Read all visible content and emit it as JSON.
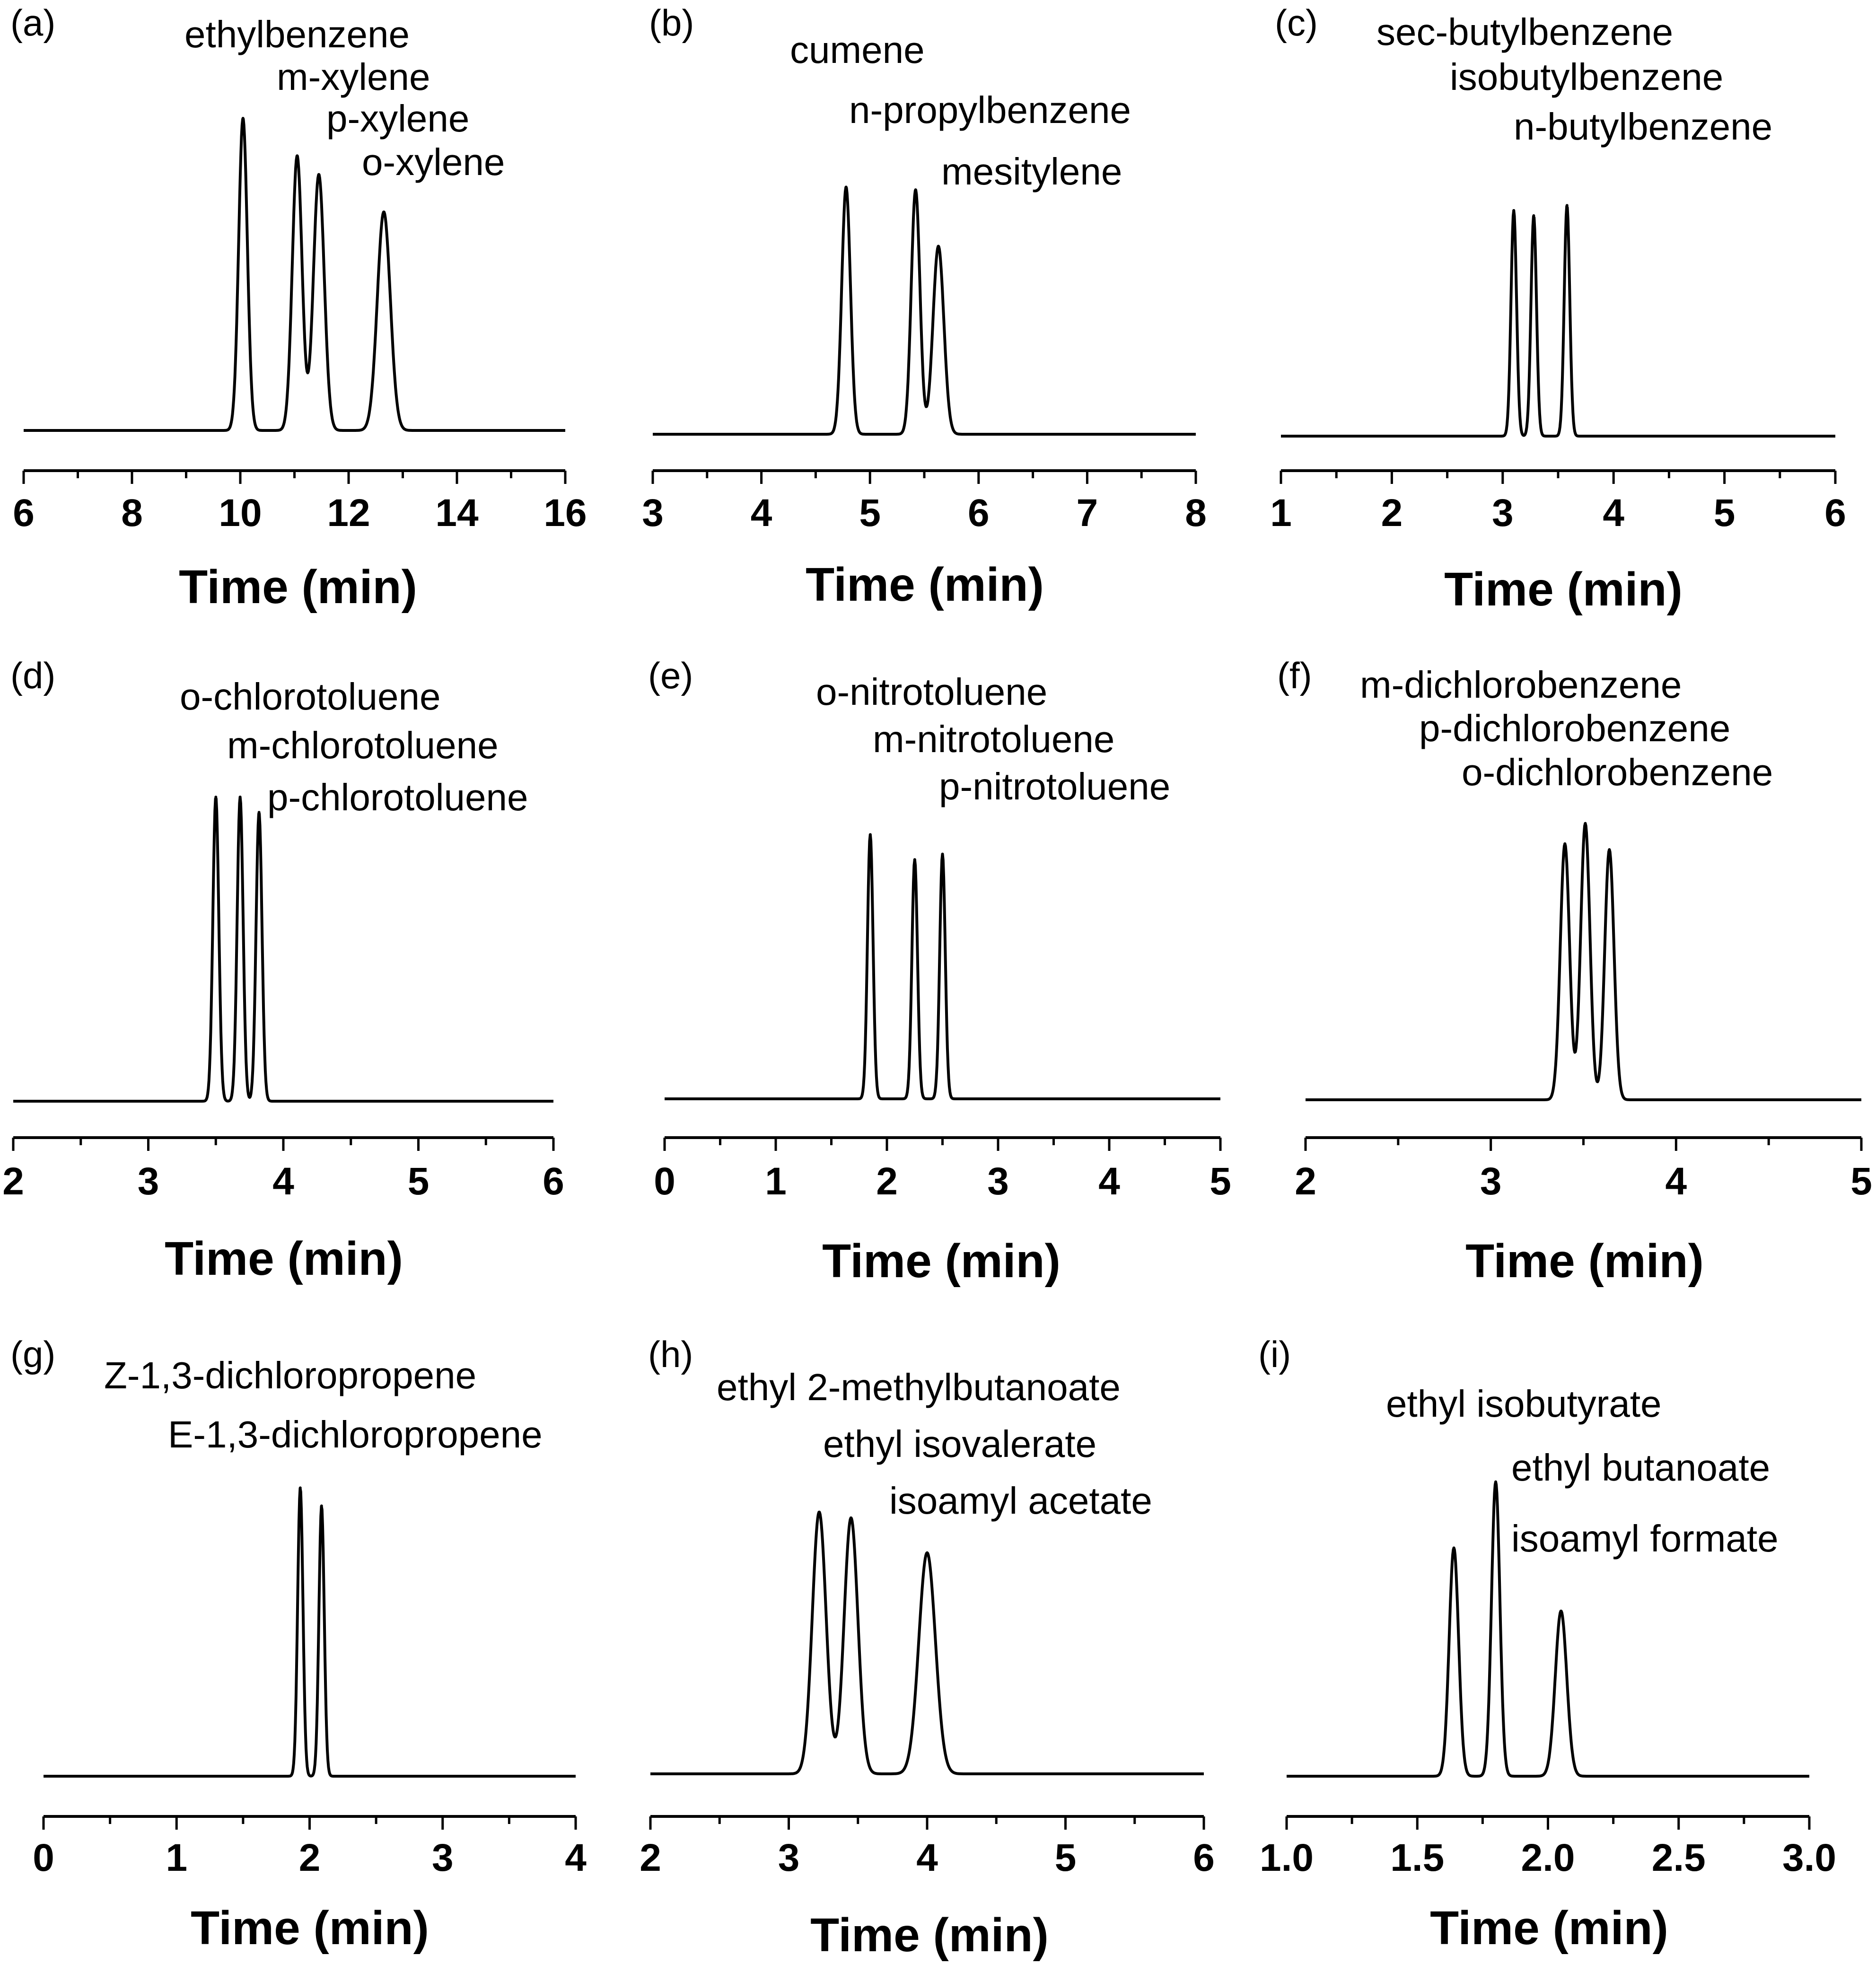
{
  "chart_data": [
    {
      "type": "line",
      "panel": "(a)",
      "xlabel": "Time (min)",
      "xlim": [
        6,
        16
      ],
      "xticks": [
        6,
        8,
        10,
        12,
        14,
        16
      ],
      "tick_labels": [
        "6",
        "8",
        "10",
        "12",
        "14",
        "16"
      ],
      "peaks": [
        {
          "name": "ethylbenzene",
          "x": 10.05,
          "height": 1.0,
          "width": 0.08
        },
        {
          "name": "m-xylene",
          "x": 11.05,
          "height": 0.88,
          "width": 0.09
        },
        {
          "name": "p-xylene",
          "x": 11.45,
          "height": 0.82,
          "width": 0.1
        },
        {
          "name": "o-xylene",
          "x": 12.65,
          "height": 0.7,
          "width": 0.12
        }
      ]
    },
    {
      "type": "line",
      "panel": "(b)",
      "xlabel": "Time (min)",
      "xlim": [
        3,
        8
      ],
      "xticks": [
        3,
        4,
        5,
        6,
        7,
        8
      ],
      "tick_labels": [
        "3",
        "4",
        "5",
        "6",
        "7",
        "8"
      ],
      "peaks": [
        {
          "name": "cumene",
          "x": 4.78,
          "height": 0.92,
          "width": 0.04
        },
        {
          "name": "n-propylbenzene",
          "x": 5.42,
          "height": 0.91,
          "width": 0.04
        },
        {
          "name": "mesitylene",
          "x": 5.63,
          "height": 0.7,
          "width": 0.05
        }
      ]
    },
    {
      "type": "line",
      "panel": "(c)",
      "xlabel": "Time (min)",
      "xlim": [
        1,
        6
      ],
      "xticks": [
        1,
        2,
        3,
        4,
        5,
        6
      ],
      "tick_labels": [
        "1",
        "2",
        "3",
        "4",
        "5",
        "6"
      ],
      "peaks": [
        {
          "name": "sec-butylbenzene",
          "x": 3.1,
          "height": 0.88,
          "width": 0.025
        },
        {
          "name": "isobutylbenzene",
          "x": 3.28,
          "height": 0.86,
          "width": 0.025
        },
        {
          "name": "n-butylbenzene",
          "x": 3.58,
          "height": 0.9,
          "width": 0.025
        }
      ]
    },
    {
      "type": "line",
      "panel": "(d)",
      "xlabel": "Time (min)",
      "xlim": [
        2,
        6
      ],
      "xticks": [
        2,
        3,
        4,
        5,
        6
      ],
      "tick_labels": [
        "2",
        "3",
        "4",
        "5",
        "6"
      ],
      "peaks": [
        {
          "name": "o-chlorotoluene",
          "x": 3.5,
          "height": 1.0,
          "width": 0.022
        },
        {
          "name": "m-chlorotoluene",
          "x": 3.68,
          "height": 1.0,
          "width": 0.022
        },
        {
          "name": "p-chlorotoluene",
          "x": 3.82,
          "height": 0.95,
          "width": 0.022
        }
      ]
    },
    {
      "type": "line",
      "panel": "(e)",
      "xlabel": "Time (min)",
      "xlim": [
        0,
        5
      ],
      "xticks": [
        0,
        1,
        2,
        3,
        4,
        5
      ],
      "tick_labels": [
        "0",
        "1",
        "2",
        "3",
        "4",
        "5"
      ],
      "peaks": [
        {
          "name": "o-nitrotoluene",
          "x": 1.85,
          "height": 0.95,
          "width": 0.025
        },
        {
          "name": "m-nitrotoluene",
          "x": 2.25,
          "height": 0.86,
          "width": 0.025
        },
        {
          "name": "p-nitrotoluene",
          "x": 2.5,
          "height": 0.88,
          "width": 0.025
        }
      ]
    },
    {
      "type": "line",
      "panel": "(f)",
      "xlabel": "Time (min)",
      "xlim": [
        2,
        5
      ],
      "xticks": [
        2,
        3,
        4,
        5
      ],
      "tick_labels": [
        "2",
        "3",
        "4",
        "5"
      ],
      "peaks": [
        {
          "name": "m-dichlorobenzene",
          "x": 3.4,
          "height": 0.88,
          "width": 0.025
        },
        {
          "name": "p-dichlorobenzene",
          "x": 3.51,
          "height": 0.95,
          "width": 0.025
        },
        {
          "name": "o-dichlorobenzene",
          "x": 3.64,
          "height": 0.86,
          "width": 0.025
        }
      ]
    },
    {
      "type": "line",
      "panel": "(g)",
      "xlabel": "Time (min)",
      "xlim": [
        0,
        4
      ],
      "xticks": [
        0,
        1,
        2,
        3,
        4
      ],
      "tick_labels": [
        "0",
        "1",
        "2",
        "3",
        "4"
      ],
      "peaks": [
        {
          "name": "Z-1,3-dichloropropene",
          "x": 1.93,
          "height": 0.96,
          "width": 0.02
        },
        {
          "name": "E-1,3-dichloropropene",
          "x": 2.09,
          "height": 0.9,
          "width": 0.02
        }
      ]
    },
    {
      "type": "line",
      "panel": "(h)",
      "xlabel": "Time (min)",
      "xlim": [
        2,
        6
      ],
      "xticks": [
        2,
        3,
        4,
        5,
        6
      ],
      "tick_labels": [
        "2",
        "3",
        "4",
        "5",
        "6"
      ],
      "peaks": [
        {
          "name": "ethyl 2-methylbutanoate",
          "x": 3.22,
          "height": 0.9,
          "width": 0.05
        },
        {
          "name": "ethyl isovalerate",
          "x": 3.45,
          "height": 0.88,
          "width": 0.05
        },
        {
          "name": "isoamyl acetate",
          "x": 4.0,
          "height": 0.76,
          "width": 0.06
        }
      ]
    },
    {
      "type": "line",
      "panel": "(i)",
      "xlabel": "Time (min)",
      "xlim": [
        1.0,
        3.0
      ],
      "xticks": [
        1.0,
        1.5,
        2.0,
        2.5,
        3.0
      ],
      "tick_labels": [
        "1.0",
        "1.5",
        "2.0",
        "2.5",
        "3.0"
      ],
      "peaks": [
        {
          "name": "ethyl isobutyrate",
          "x": 1.64,
          "height": 0.76,
          "width": 0.018
        },
        {
          "name": "ethyl butanoate",
          "x": 1.8,
          "height": 0.98,
          "width": 0.016
        },
        {
          "name": "isoamyl formate",
          "x": 2.05,
          "height": 0.55,
          "width": 0.022
        }
      ]
    }
  ]
}
